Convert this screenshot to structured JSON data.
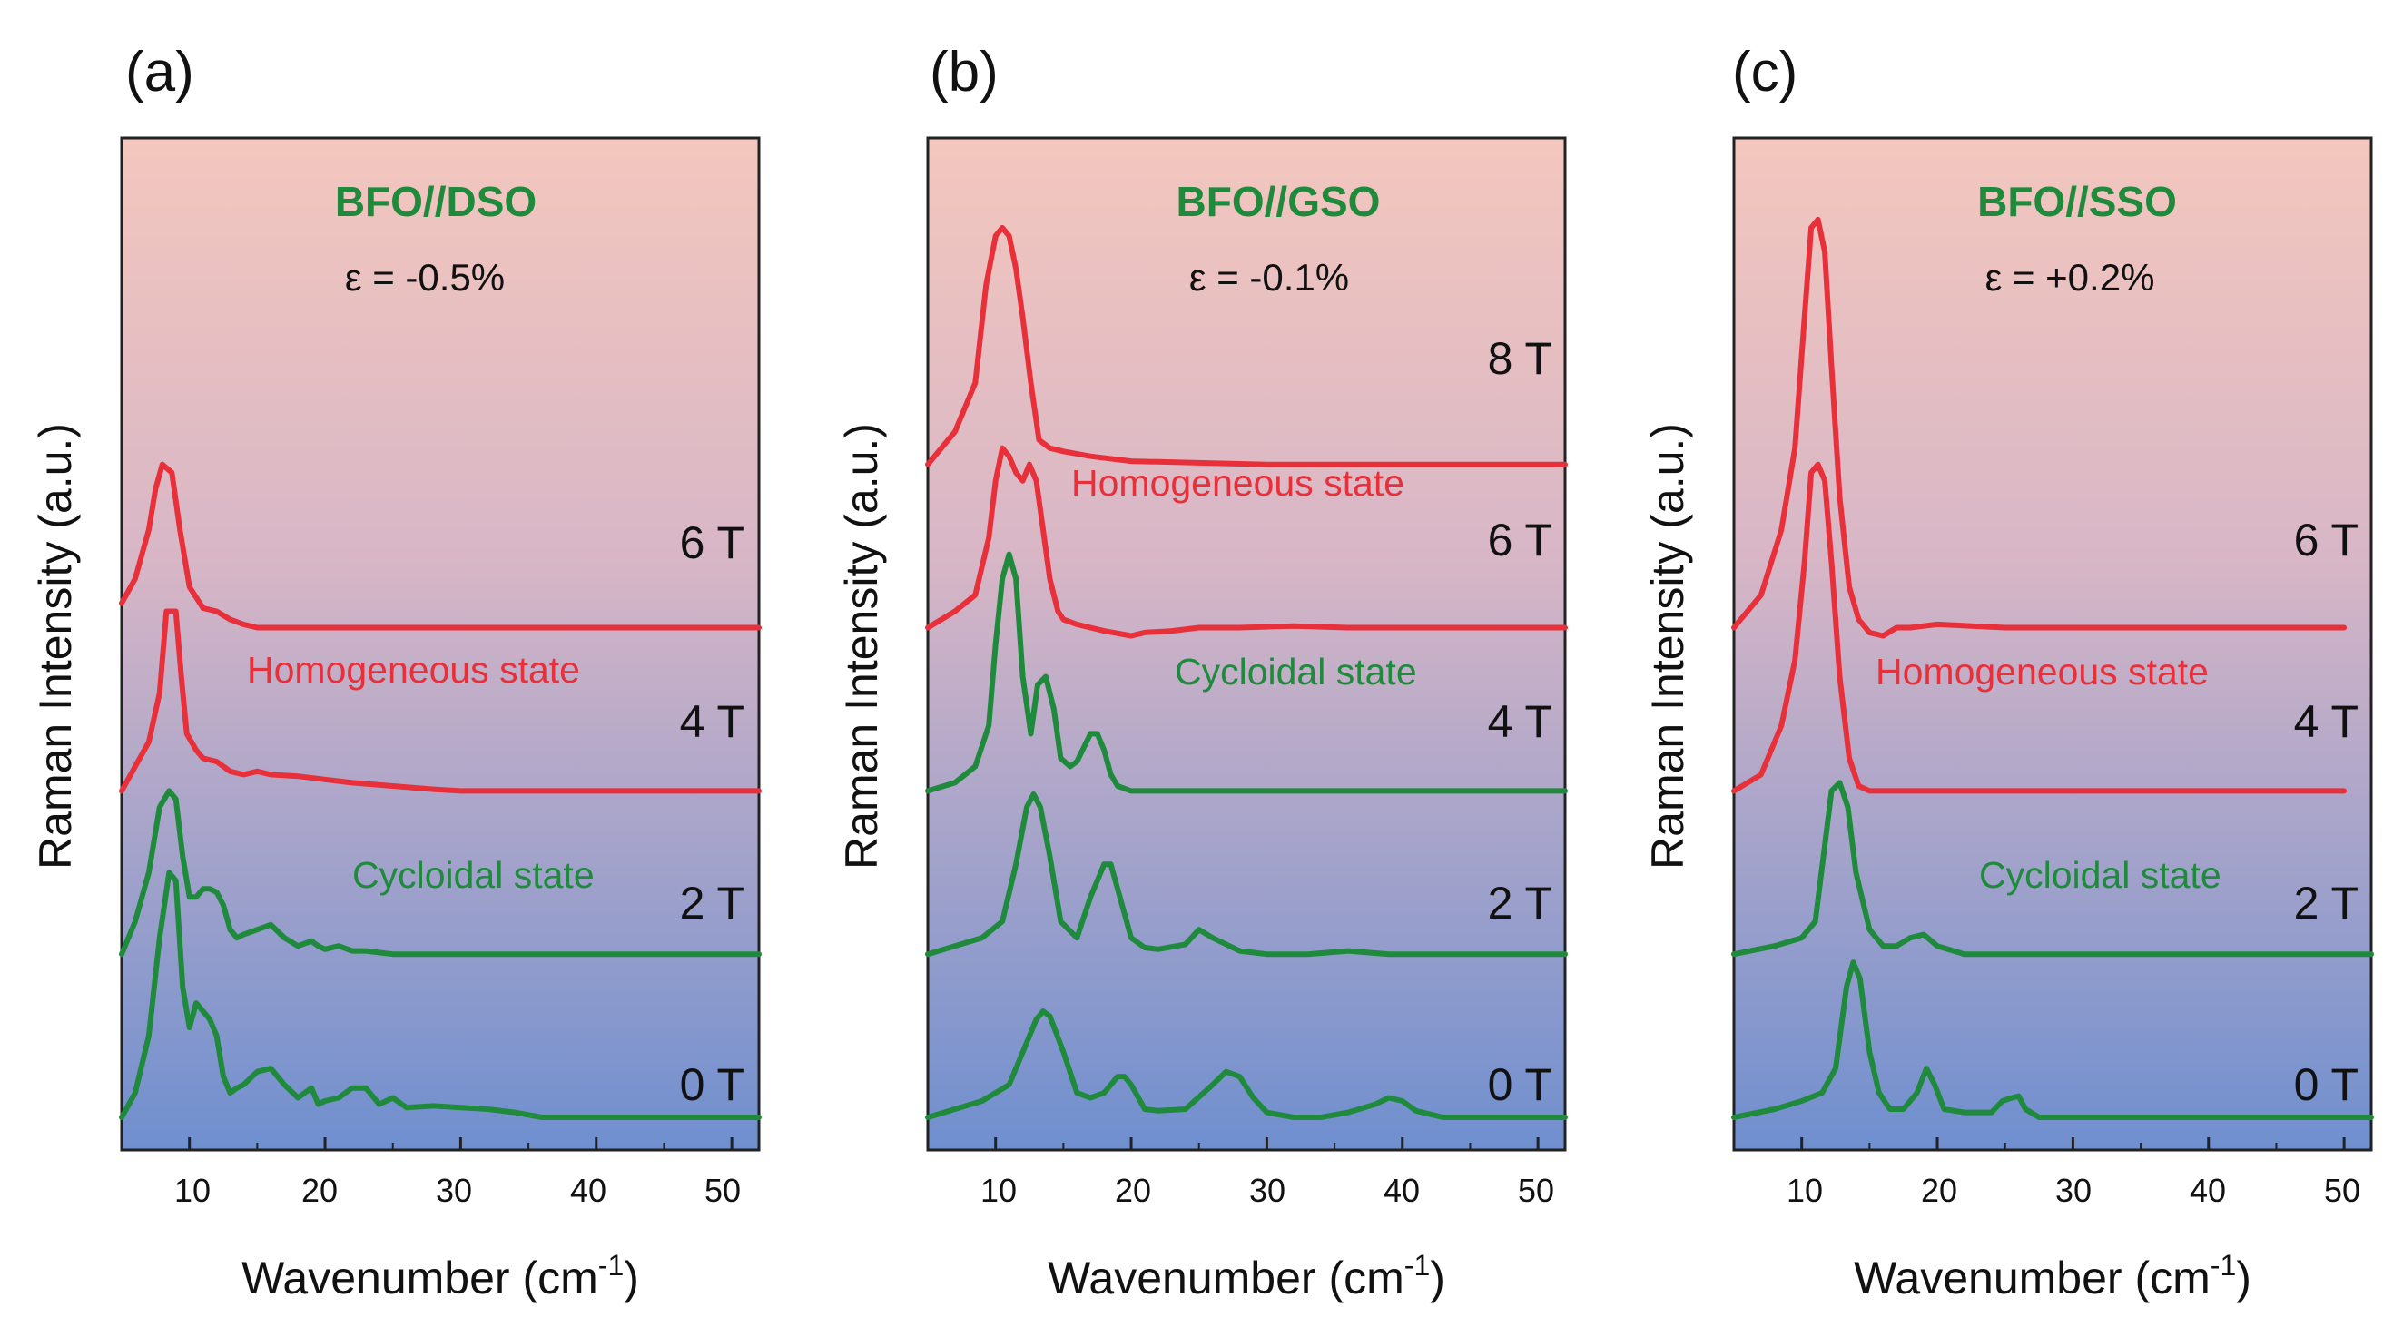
{
  "figure": {
    "xlabel_main": "Wavenumber (cm",
    "xlabel_sup": "-1",
    "xlabel_end": ")",
    "ylabel": "Raman Intensity (a.u.)",
    "colors": {
      "homogeneous": "#e8303a",
      "cycloidal": "#1f8a3c",
      "bg_top": "#f4c7be",
      "bg_bottom": "#6f8fcf"
    }
  },
  "chart_data": [
    {
      "type": "line",
      "panel": "(a)",
      "title": "BFO//DSO",
      "strain": "ε = -0.5%",
      "xlim": [
        5,
        52
      ],
      "xticks": [
        "10",
        "20",
        "30",
        "40",
        "50"
      ],
      "ylim": [
        0,
        6.2
      ],
      "state_labels": [
        {
          "text": "Homogeneous state",
          "color": "homogeneous"
        },
        {
          "text": "Cycloidal state",
          "color": "cycloidal"
        }
      ],
      "series": [
        {
          "name": "0 T",
          "color": "cycloidal",
          "offset": 0.2,
          "x": [
            5,
            6,
            7,
            7.8,
            8.5,
            9,
            9.5,
            10,
            10.5,
            11,
            11.5,
            12,
            12.5,
            13,
            13.5,
            14,
            15,
            16,
            17,
            18,
            19,
            19.5,
            20,
            21,
            22,
            23,
            24,
            25,
            26,
            28,
            30,
            32,
            34,
            36,
            40,
            45,
            52
          ],
          "y": [
            0.0,
            0.15,
            0.5,
            1.1,
            1.5,
            1.45,
            0.8,
            0.55,
            0.7,
            0.65,
            0.6,
            0.5,
            0.25,
            0.15,
            0.18,
            0.2,
            0.28,
            0.3,
            0.2,
            0.12,
            0.18,
            0.08,
            0.1,
            0.12,
            0.18,
            0.18,
            0.08,
            0.12,
            0.06,
            0.07,
            0.06,
            0.05,
            0.03,
            0.0,
            0.0,
            0.0,
            0.0
          ]
        },
        {
          "name": "2 T",
          "color": "cycloidal",
          "offset": 1.2,
          "x": [
            5,
            6,
            7,
            7.8,
            8.5,
            9,
            9.5,
            10,
            10.5,
            11,
            11.5,
            12,
            12.5,
            13,
            13.5,
            14,
            15,
            16,
            17,
            18,
            19,
            19.5,
            20,
            21,
            22,
            23,
            25,
            30,
            40,
            52
          ],
          "y": [
            0.0,
            0.2,
            0.5,
            0.9,
            1.0,
            0.95,
            0.6,
            0.35,
            0.35,
            0.4,
            0.4,
            0.38,
            0.3,
            0.15,
            0.1,
            0.12,
            0.15,
            0.18,
            0.1,
            0.05,
            0.08,
            0.05,
            0.03,
            0.05,
            0.02,
            0.02,
            0.0,
            0.0,
            0.0,
            0.0
          ]
        },
        {
          "name": "4 T",
          "color": "homogeneous",
          "offset": 2.2,
          "x": [
            5,
            6,
            7,
            7.8,
            8.3,
            9,
            9.4,
            9.8,
            10.5,
            11,
            12,
            13,
            14,
            15,
            16,
            18,
            20,
            22,
            25,
            28,
            30,
            35,
            40,
            45,
            52
          ],
          "y": [
            0.0,
            0.15,
            0.3,
            0.6,
            1.1,
            1.1,
            0.7,
            0.35,
            0.25,
            0.2,
            0.18,
            0.12,
            0.1,
            0.12,
            0.1,
            0.09,
            0.07,
            0.05,
            0.03,
            0.01,
            0.0,
            0.0,
            0.0,
            0.0,
            0.0
          ]
        },
        {
          "name": "6 T",
          "color": "homogeneous",
          "offset": 3.2,
          "x": [
            5,
            6,
            7,
            7.5,
            8,
            8.7,
            9.3,
            10,
            11,
            12,
            13,
            14,
            15,
            17,
            20,
            30,
            40,
            52
          ],
          "y": [
            0.15,
            0.3,
            0.6,
            0.85,
            1.0,
            0.95,
            0.6,
            0.25,
            0.12,
            0.1,
            0.05,
            0.02,
            0.0,
            0.0,
            0.0,
            0.0,
            0.0,
            0.0
          ]
        }
      ]
    },
    {
      "type": "line",
      "panel": "(b)",
      "title": "BFO//GSO",
      "strain": "ε = -0.1%",
      "xlim": [
        5,
        52
      ],
      "xticks": [
        "10",
        "20",
        "30",
        "40",
        "50"
      ],
      "ylim": [
        0,
        6.2
      ],
      "state_labels": [
        {
          "text": "Homogeneous state",
          "color": "homogeneous"
        },
        {
          "text": "Cycloidal state",
          "color": "cycloidal"
        }
      ],
      "series": [
        {
          "name": "0 T",
          "color": "cycloidal",
          "offset": 0.2,
          "x": [
            5,
            7,
            9,
            11,
            12,
            13,
            13.5,
            14,
            15,
            16,
            17,
            18,
            19,
            19.5,
            20,
            21,
            22,
            24,
            26,
            27,
            28,
            29,
            30,
            32,
            34,
            36,
            38,
            39,
            40,
            41,
            43,
            52
          ],
          "y": [
            0.0,
            0.05,
            0.1,
            0.2,
            0.4,
            0.6,
            0.65,
            0.62,
            0.4,
            0.15,
            0.12,
            0.15,
            0.25,
            0.25,
            0.2,
            0.05,
            0.04,
            0.05,
            0.2,
            0.28,
            0.25,
            0.12,
            0.03,
            0.0,
            0.0,
            0.03,
            0.08,
            0.12,
            0.1,
            0.04,
            0.0,
            0.0
          ]
        },
        {
          "name": "2 T",
          "color": "cycloidal",
          "offset": 1.2,
          "x": [
            5,
            7,
            9,
            10.5,
            11.5,
            12.3,
            12.8,
            13.3,
            14,
            14.8,
            16,
            17,
            18,
            18.5,
            19,
            20,
            21,
            22,
            24,
            25,
            26,
            28,
            30,
            33,
            36,
            39,
            42,
            52
          ],
          "y": [
            0.0,
            0.05,
            0.1,
            0.2,
            0.55,
            0.9,
            0.98,
            0.9,
            0.6,
            0.2,
            0.1,
            0.35,
            0.55,
            0.55,
            0.4,
            0.1,
            0.04,
            0.03,
            0.06,
            0.15,
            0.1,
            0.02,
            0.0,
            0.0,
            0.02,
            0.0,
            0.0,
            0.0
          ]
        },
        {
          "name": "4 T",
          "color": "cycloidal",
          "offset": 2.2,
          "x": [
            5,
            7,
            8.5,
            9.5,
            10,
            10.5,
            11,
            11.5,
            12,
            12.6,
            13.1,
            13.7,
            14.3,
            14.8,
            15.5,
            16,
            17,
            17.5,
            18,
            18.5,
            19,
            20,
            22,
            30,
            40,
            52
          ],
          "y": [
            0.0,
            0.05,
            0.15,
            0.4,
            0.9,
            1.3,
            1.45,
            1.3,
            0.7,
            0.35,
            0.65,
            0.7,
            0.5,
            0.2,
            0.15,
            0.18,
            0.35,
            0.35,
            0.25,
            0.1,
            0.03,
            0.0,
            0.0,
            0.0,
            0.0,
            0.0
          ]
        },
        {
          "name": "6 T",
          "color": "homogeneous",
          "offset": 3.2,
          "x": [
            5,
            7,
            8.5,
            9.5,
            10,
            10.5,
            11,
            11.5,
            12,
            12.5,
            13,
            13.5,
            14,
            14.6,
            15,
            16,
            17,
            18,
            20,
            21,
            23,
            25,
            28,
            32,
            36,
            40,
            45,
            52
          ],
          "y": [
            0.0,
            0.1,
            0.2,
            0.55,
            0.9,
            1.1,
            1.05,
            0.95,
            0.9,
            1.0,
            0.9,
            0.6,
            0.3,
            0.1,
            0.05,
            0.02,
            0.0,
            -0.02,
            -0.05,
            -0.03,
            -0.02,
            0.0,
            0.0,
            0.01,
            0.0,
            0.0,
            0.0,
            0.0
          ]
        },
        {
          "name": "8 T",
          "color": "homogeneous",
          "offset": 4.2,
          "x": [
            5,
            7,
            8.5,
            9.3,
            10,
            10.5,
            11,
            11.5,
            12,
            12.6,
            13.2,
            14,
            15,
            17,
            20,
            30,
            40,
            52
          ],
          "y": [
            0.0,
            0.2,
            0.5,
            1.1,
            1.4,
            1.45,
            1.4,
            1.2,
            0.9,
            0.5,
            0.15,
            0.1,
            0.08,
            0.05,
            0.02,
            0.0,
            0.0,
            0.0
          ]
        }
      ]
    },
    {
      "type": "line",
      "panel": "(c)",
      "title": "BFO//SSO",
      "strain": "ε = +0.2%",
      "xlim": [
        5,
        52
      ],
      "xticks": [
        "10",
        "20",
        "30",
        "40",
        "50"
      ],
      "ylim": [
        0,
        6.2
      ],
      "state_labels": [
        {
          "text": "Homogeneous state",
          "color": "homogeneous"
        },
        {
          "text": "Cycloidal state",
          "color": "cycloidal"
        }
      ],
      "series": [
        {
          "name": "0 T",
          "color": "cycloidal",
          "offset": 0.2,
          "x": [
            5,
            8,
            10,
            11.5,
            12.5,
            13.3,
            13.8,
            14.3,
            15,
            15.7,
            16.5,
            17.5,
            18.5,
            19.2,
            19.8,
            20.5,
            22,
            24,
            24.8,
            25.5,
            26,
            26.5,
            27.5,
            30,
            40,
            52
          ],
          "y": [
            0.0,
            0.05,
            0.1,
            0.15,
            0.3,
            0.8,
            0.95,
            0.85,
            0.4,
            0.15,
            0.05,
            0.05,
            0.15,
            0.3,
            0.2,
            0.05,
            0.03,
            0.03,
            0.1,
            0.12,
            0.13,
            0.05,
            0.0,
            0.0,
            0.0,
            0.0
          ]
        },
        {
          "name": "2 T",
          "color": "cycloidal",
          "offset": 1.2,
          "x": [
            5,
            8,
            10,
            11,
            11.6,
            12.2,
            12.8,
            13.4,
            14,
            15,
            16,
            17,
            18,
            19,
            20,
            22,
            30,
            40,
            52
          ],
          "y": [
            0.0,
            0.05,
            0.1,
            0.2,
            0.6,
            1.0,
            1.05,
            0.9,
            0.5,
            0.15,
            0.05,
            0.05,
            0.1,
            0.12,
            0.05,
            0.0,
            0.0,
            0.0,
            0.0
          ]
        },
        {
          "name": "4 T",
          "color": "homogeneous",
          "offset": 2.2,
          "x": [
            5,
            7,
            8.5,
            9.5,
            10.2,
            10.7,
            11.2,
            11.7,
            12.2,
            12.8,
            13.5,
            14.2,
            15,
            16,
            20,
            30,
            40,
            50
          ],
          "y": [
            0.0,
            0.1,
            0.4,
            0.8,
            1.4,
            1.95,
            2.0,
            1.9,
            1.4,
            0.7,
            0.2,
            0.03,
            0.0,
            0.0,
            0.0,
            0.0,
            0.0,
            0.0
          ]
        },
        {
          "name": "6 T",
          "color": "homogeneous",
          "offset": 3.2,
          "x": [
            5,
            7,
            8.5,
            9.5,
            10.2,
            10.7,
            11.2,
            11.7,
            12.2,
            12.8,
            13.5,
            14.2,
            15,
            16,
            17,
            18,
            20,
            25,
            30,
            40,
            50
          ],
          "y": [
            0.0,
            0.2,
            0.6,
            1.1,
            1.9,
            2.45,
            2.5,
            2.3,
            1.6,
            0.8,
            0.25,
            0.05,
            -0.03,
            -0.05,
            0.0,
            0.0,
            0.02,
            0.0,
            0.0,
            0.0,
            0.0
          ]
        }
      ]
    }
  ]
}
